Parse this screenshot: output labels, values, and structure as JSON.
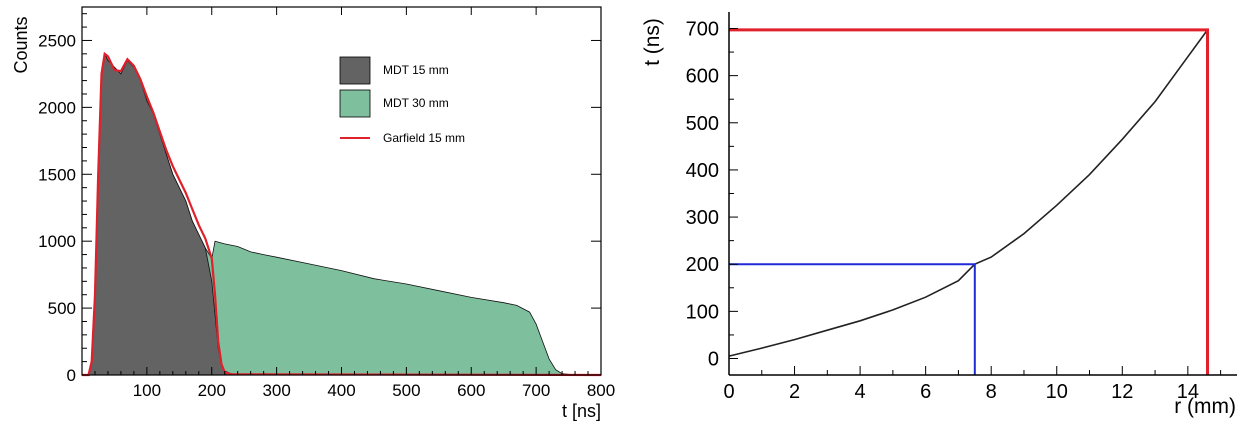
{
  "chart_data": [
    {
      "type": "area",
      "title": "",
      "xlabel": "t [ns]",
      "ylabel": "Counts",
      "xlim": [
        0,
        800
      ],
      "ylim": [
        0,
        2750
      ],
      "xticks": [
        100,
        200,
        300,
        400,
        500,
        600,
        700,
        800
      ],
      "yticks": [
        0,
        500,
        1000,
        1500,
        2000,
        2500
      ],
      "legend_position": "top-right",
      "series": [
        {
          "name": "MDT 15 mm",
          "color": "#636363",
          "x": [
            0,
            10,
            15,
            20,
            25,
            30,
            35,
            40,
            50,
            60,
            70,
            80,
            90,
            100,
            110,
            120,
            130,
            140,
            150,
            160,
            170,
            180,
            190,
            200,
            205,
            210,
            215,
            220,
            230,
            240
          ],
          "y": [
            0,
            0,
            100,
            600,
            1500,
            2250,
            2400,
            2350,
            2300,
            2250,
            2350,
            2300,
            2200,
            2050,
            1950,
            1800,
            1650,
            1500,
            1400,
            1300,
            1150,
            1050,
            950,
            700,
            450,
            200,
            80,
            30,
            10,
            0
          ]
        },
        {
          "name": "MDT 30 mm",
          "color": "#7ebf9e",
          "x": [
            0,
            10,
            15,
            20,
            25,
            30,
            35,
            40,
            50,
            60,
            70,
            80,
            90,
            100,
            110,
            120,
            130,
            140,
            150,
            160,
            170,
            180,
            190,
            200,
            205,
            220,
            240,
            260,
            280,
            300,
            350,
            400,
            450,
            500,
            550,
            600,
            650,
            670,
            690,
            700,
            710,
            720,
            730,
            740,
            760,
            780,
            800
          ],
          "y": [
            0,
            0,
            100,
            600,
            1500,
            2250,
            2400,
            2350,
            2300,
            2250,
            2350,
            2300,
            2200,
            2050,
            1950,
            1800,
            1650,
            1500,
            1400,
            1300,
            1150,
            1050,
            950,
            870,
            1000,
            980,
            960,
            920,
            900,
            880,
            830,
            780,
            720,
            680,
            630,
            580,
            540,
            520,
            470,
            380,
            250,
            120,
            40,
            10,
            0,
            0,
            0
          ]
        },
        {
          "name": "Garfield 15 mm",
          "color": "#e0202a",
          "x": [
            0,
            10,
            15,
            20,
            25,
            30,
            35,
            40,
            50,
            60,
            70,
            80,
            90,
            100,
            110,
            120,
            130,
            140,
            150,
            160,
            170,
            180,
            190,
            200,
            205,
            210,
            215,
            220,
            230,
            800
          ],
          "y": [
            0,
            0,
            100,
            600,
            1500,
            2250,
            2400,
            2380,
            2280,
            2270,
            2360,
            2310,
            2210,
            2080,
            1960,
            1820,
            1680,
            1560,
            1460,
            1360,
            1240,
            1120,
            1020,
            870,
            600,
            250,
            80,
            20,
            5,
            0
          ]
        }
      ]
    },
    {
      "type": "line",
      "title": "",
      "xlabel": "r (mm)",
      "ylabel": "t (ns)",
      "xlim": [
        0,
        15.5
      ],
      "ylim": [
        -35,
        735
      ],
      "xticks": [
        0,
        2,
        4,
        6,
        8,
        10,
        12,
        14
      ],
      "yticks": [
        0,
        100,
        200,
        300,
        400,
        500,
        600,
        700
      ],
      "series": [
        {
          "name": "",
          "color": "#222222",
          "x": [
            0,
            1,
            2,
            3,
            4,
            5,
            6,
            7,
            7.5,
            8,
            9,
            10,
            11,
            12,
            13,
            14,
            14.6
          ],
          "y": [
            5,
            22,
            40,
            60,
            80,
            103,
            130,
            165,
            200,
            215,
            265,
            325,
            390,
            465,
            545,
            640,
            697
          ]
        }
      ],
      "markers": {
        "blue": {
          "color": "#1f2bd6",
          "x": 7.5,
          "y": 200
        },
        "red": {
          "color": "#e0202a",
          "x": 14.6,
          "y": 697
        }
      }
    }
  ]
}
